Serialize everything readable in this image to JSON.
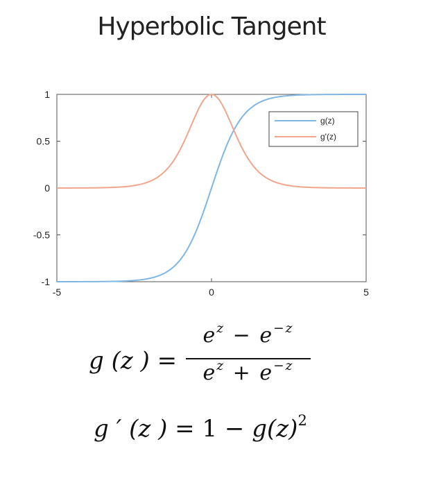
{
  "page": {
    "title": "Hyperbolic Tangent"
  },
  "chart_data": {
    "type": "line",
    "title": "",
    "xlabel": "",
    "ylabel": "",
    "xlim": [
      -5,
      5
    ],
    "ylim": [
      -1,
      1
    ],
    "xticks": [
      -5,
      0,
      5
    ],
    "yticks": [
      -1,
      -0.5,
      0,
      0.5,
      1
    ],
    "grid": false,
    "legend_position": "top-right",
    "series": [
      {
        "name": "g(z)",
        "color": "#7fb6e3",
        "function": "tanh(z)"
      },
      {
        "name": "g'(z)",
        "color": "#f0a58c",
        "function": "1 - tanh(z)^2"
      }
    ]
  },
  "formulas": {
    "g": {
      "lhs": "g (z ) =",
      "num_base1": "e",
      "num_exp1": "z",
      "num_op": "−",
      "num_base2": "e",
      "num_exp2": "−z",
      "den_base1": "e",
      "den_exp1": "z",
      "den_op": "+",
      "den_base2": "e",
      "den_exp2": "−z"
    },
    "gprime": {
      "lhs": "g ′ (z ) =",
      "rhs_one": "1",
      "rhs_minus": "−",
      "rhs_g": "g(z)",
      "rhs_exp": "2"
    }
  }
}
